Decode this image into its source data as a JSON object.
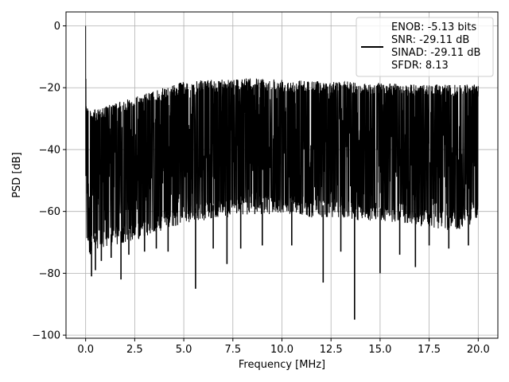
{
  "chart_data": {
    "type": "line",
    "xlabel": "Frequency [MHz]",
    "ylabel": "PSD [dB]",
    "xlim": [
      -1,
      21
    ],
    "ylim": [
      -101,
      4.5
    ],
    "x_ticks": [
      0.0,
      2.5,
      5.0,
      7.5,
      10.0,
      12.5,
      15.0,
      17.5,
      20.0
    ],
    "x_tick_labels": [
      "0.0",
      "2.5",
      "5.0",
      "7.5",
      "10.0",
      "12.5",
      "15.0",
      "17.5",
      "20.0"
    ],
    "y_ticks": [
      0,
      -20,
      -40,
      -60,
      -80,
      -100
    ],
    "y_tick_labels": [
      "0",
      "−20",
      "−40",
      "−60",
      "−80",
      "−100"
    ],
    "grid": true,
    "legend_position": "top-right",
    "legend_lines": [
      "ENOB: -5.13 bits",
      "SNR: -29.11 dB",
      "SINAD: -29.11 dB",
      "SFDR: 8.13"
    ],
    "line_color": "#000000",
    "series": [
      {
        "x": [
          0.0,
          0.02,
          0.06,
          0.12,
          0.2,
          0.28,
          0.5,
          1.0,
          1.5,
          2.0,
          2.5,
          3.0,
          3.5,
          4.0,
          4.5,
          5.0,
          5.5,
          6.0,
          6.5,
          7.0,
          7.5,
          8.0,
          8.5,
          9.0,
          9.5,
          10.0,
          10.5,
          11.0,
          11.5,
          12.0,
          12.5,
          13.0,
          13.5,
          14.0,
          14.5,
          15.0,
          15.5,
          16.0,
          16.5,
          17.0,
          17.5,
          18.0,
          18.5,
          19.0,
          19.5,
          20.0
        ],
        "upper": [
          0,
          -22,
          -24,
          -26,
          -27,
          -27,
          -27,
          -26,
          -25,
          -24,
          -23,
          -22,
          -21,
          -20,
          -19,
          -18,
          -18,
          -17.5,
          -17.5,
          -17,
          -17,
          -17,
          -17,
          -17,
          -17,
          -17,
          -17.5,
          -17.5,
          -17.5,
          -18,
          -18,
          -18,
          -18,
          -18.5,
          -18.5,
          -18.5,
          -18.5,
          -19,
          -19,
          -19,
          -19,
          -19,
          -19,
          -19,
          -19,
          -18.5
        ],
        "lower": [
          -65,
          -68,
          -70,
          -72,
          -74,
          -74,
          -72,
          -72,
          -71,
          -70,
          -70,
          -68,
          -68,
          -66,
          -65,
          -64,
          -63,
          -63,
          -62,
          -62,
          -62,
          -61,
          -61,
          -61,
          -61,
          -61,
          -61,
          -61,
          -62,
          -62,
          -62,
          -62,
          -63,
          -63,
          -63,
          -63,
          -64,
          -64,
          -64,
          -65,
          -65,
          -66,
          -66,
          -66,
          -65,
          -62
        ],
        "dips": [
          {
            "x": 0.3,
            "y": -81
          },
          {
            "x": 0.5,
            "y": -79
          },
          {
            "x": 0.8,
            "y": -76
          },
          {
            "x": 1.3,
            "y": -75
          },
          {
            "x": 1.8,
            "y": -82
          },
          {
            "x": 2.2,
            "y": -74
          },
          {
            "x": 3.0,
            "y": -73
          },
          {
            "x": 3.6,
            "y": -72
          },
          {
            "x": 4.2,
            "y": -73
          },
          {
            "x": 5.6,
            "y": -85
          },
          {
            "x": 6.5,
            "y": -72
          },
          {
            "x": 7.2,
            "y": -77
          },
          {
            "x": 7.9,
            "y": -72
          },
          {
            "x": 9.0,
            "y": -71
          },
          {
            "x": 10.5,
            "y": -71
          },
          {
            "x": 12.1,
            "y": -83
          },
          {
            "x": 13.0,
            "y": -73
          },
          {
            "x": 13.7,
            "y": -95
          },
          {
            "x": 15.0,
            "y": -80
          },
          {
            "x": 16.0,
            "y": -74
          },
          {
            "x": 16.8,
            "y": -78
          },
          {
            "x": 17.5,
            "y": -71
          },
          {
            "x": 18.5,
            "y": -72
          },
          {
            "x": 19.5,
            "y": -71
          }
        ]
      }
    ]
  }
}
